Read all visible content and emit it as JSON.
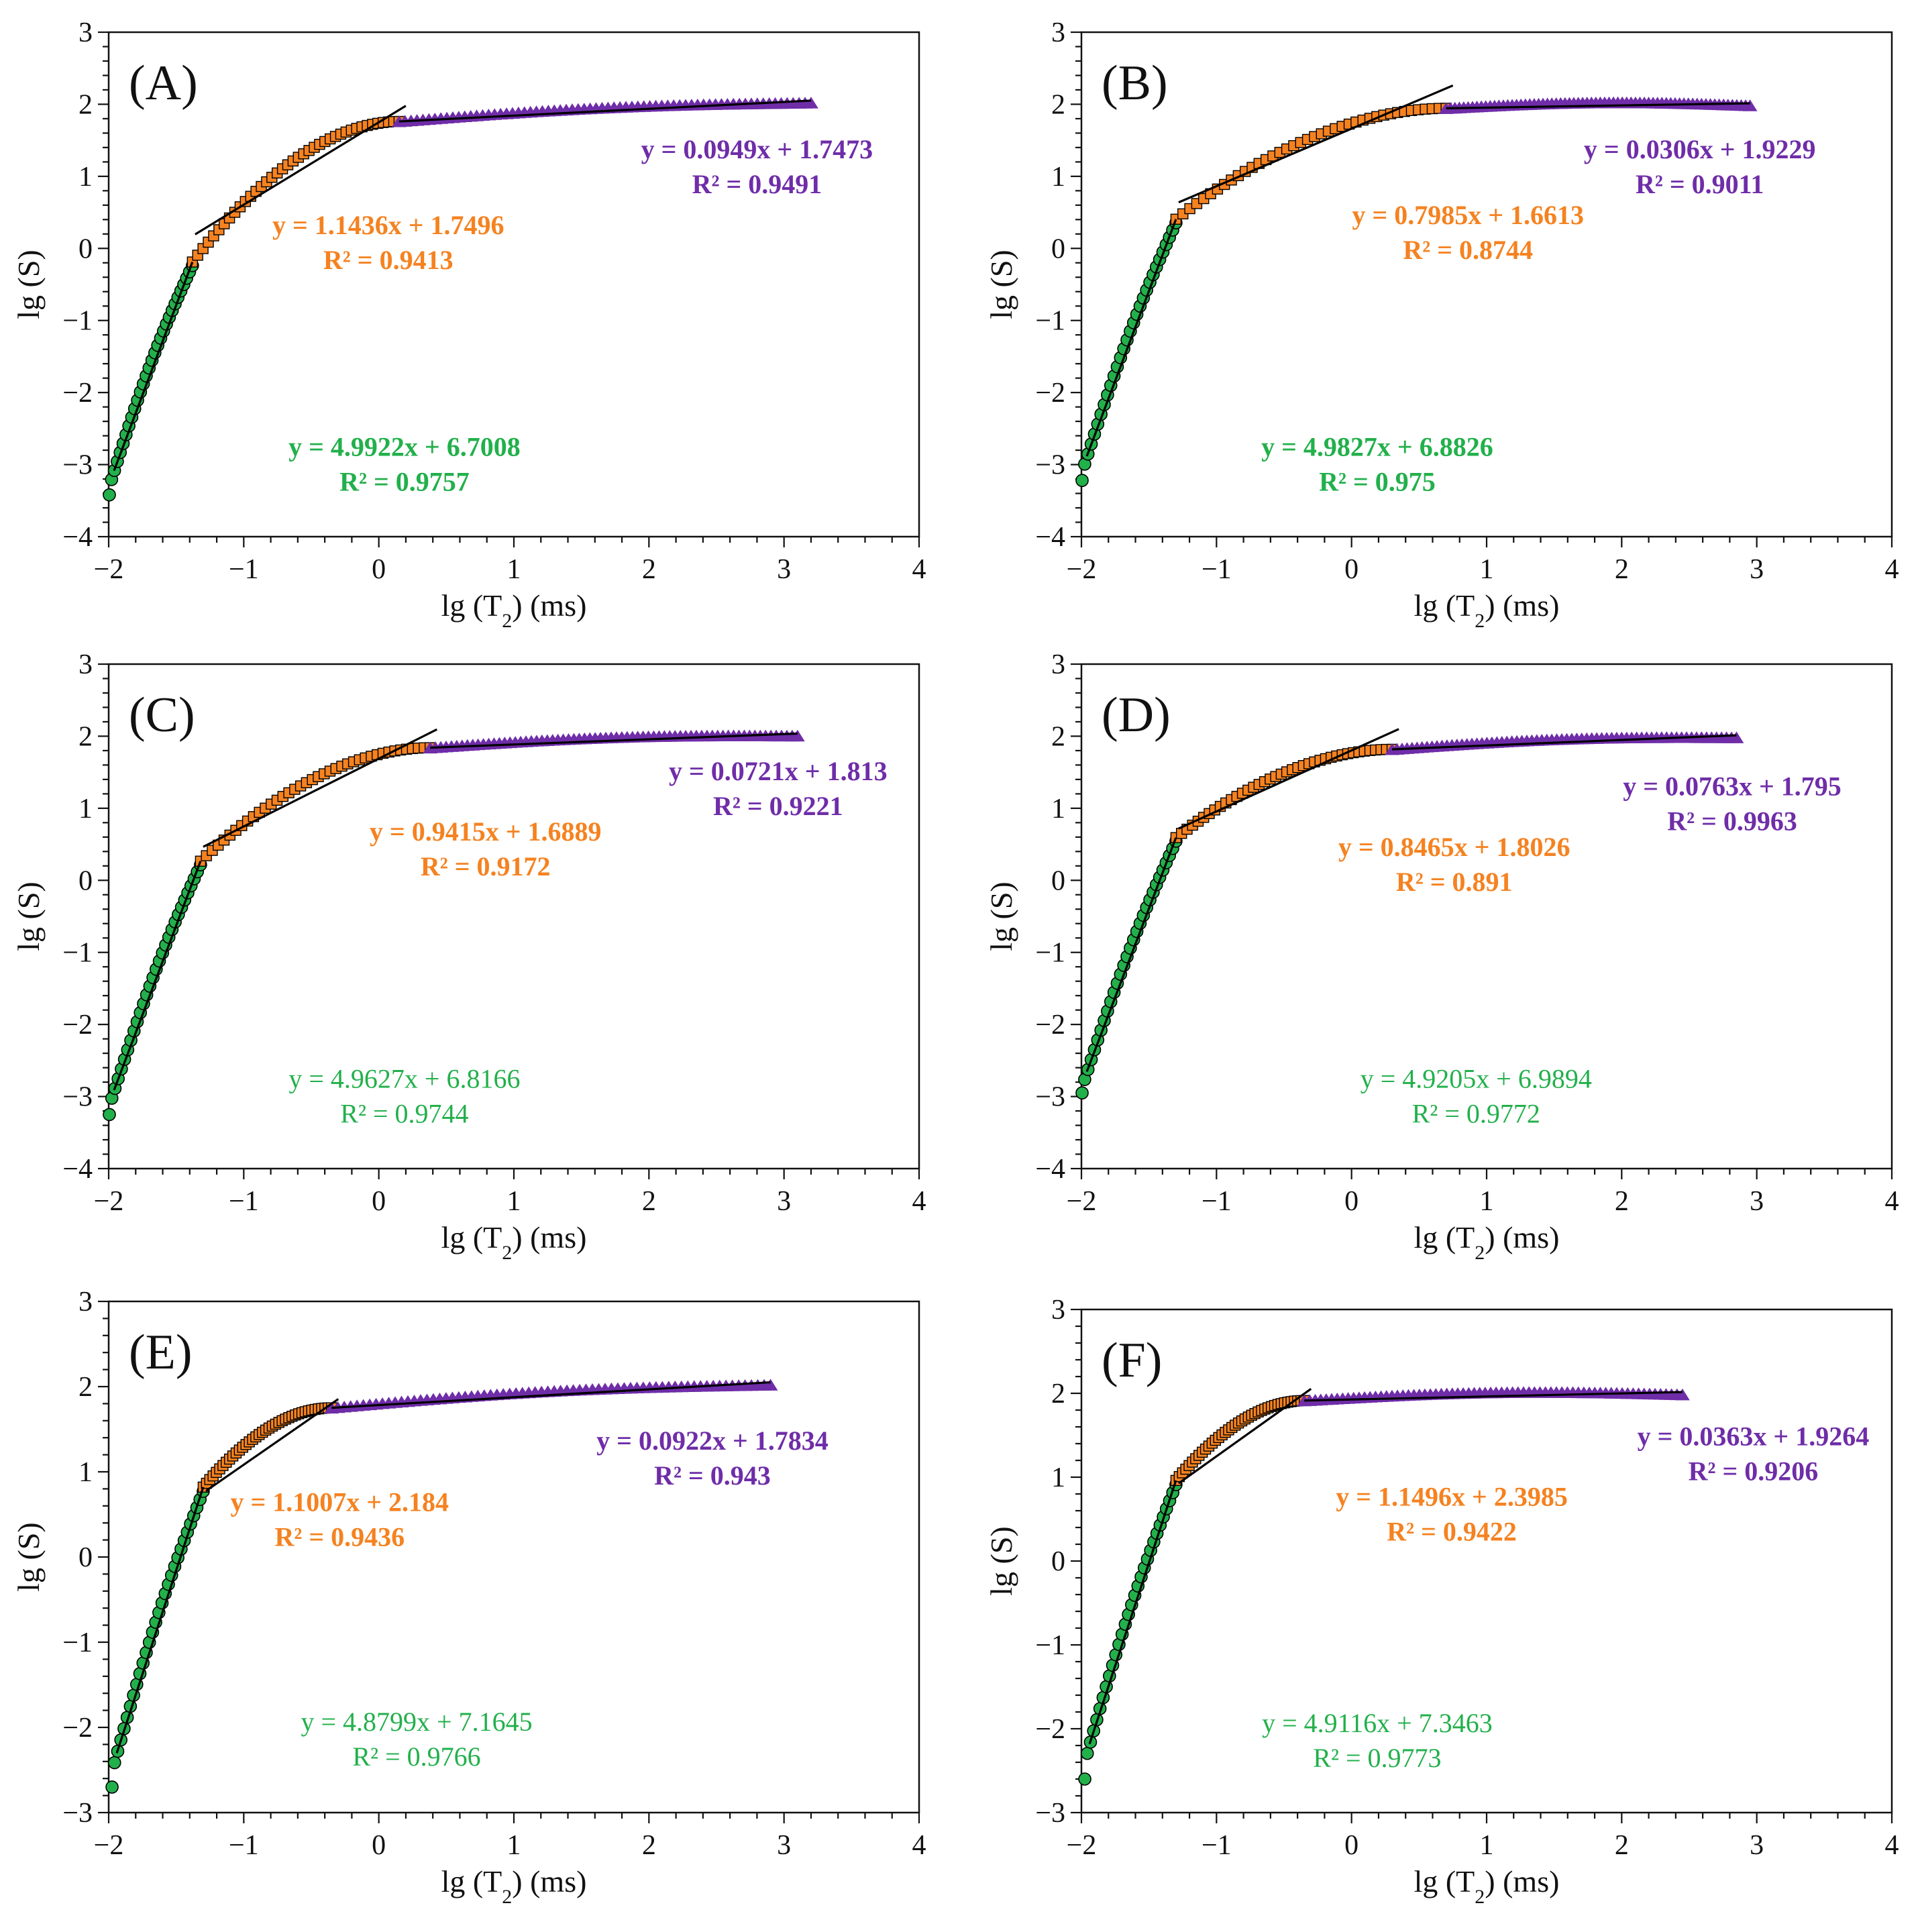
{
  "figure": {
    "colors": {
      "green": "#22b04b",
      "orange": "#f58220",
      "purple": "#6f2da8",
      "fit_line": "#000000",
      "marker_edge": "#000000"
    },
    "shared": {
      "xlabel_prefix": "lg (T",
      "xlabel_sub": "2",
      "xlabel_suffix": ") (ms)",
      "ylabel": "lg (S)"
    }
  },
  "chart_data": [
    {
      "type": "scatter",
      "label": "(A)",
      "xlim": [
        -2,
        4
      ],
      "ylim": [
        -4,
        3
      ],
      "xticks": [
        "−2",
        "−1",
        "0",
        "1",
        "2",
        "3",
        "4"
      ],
      "yticks": [
        "−4",
        "−3",
        "−2",
        "−1",
        "0",
        "1",
        "2",
        "3"
      ],
      "xlabel": "lg (T2) (ms)",
      "ylabel": "lg (S)",
      "series": [
        {
          "name": "green",
          "color": "#22b04b",
          "marker": "circle",
          "x_range": [
            -2.0,
            -1.38
          ],
          "slope": 4.9922,
          "intercept": 6.7008,
          "equation": "y = 4.9922x + 6.7008",
          "r2": "R² = 0.9757",
          "bold": true,
          "start_y": -3.42
        },
        {
          "name": "orange",
          "color": "#f58220",
          "marker": "square",
          "x_range": [
            -1.38,
            0.15
          ],
          "slope": 1.1436,
          "intercept": 1.7496,
          "equation": "y = 1.1436x + 1.7496",
          "r2": "R² = 0.9413",
          "bold": true
        },
        {
          "name": "purple",
          "color": "#6f2da8",
          "marker": "triangle",
          "x_range": [
            0.15,
            3.2
          ],
          "slope": 0.0949,
          "intercept": 1.7473,
          "equation": "y = 0.0949x + 1.7473",
          "r2": "R² = 0.9491",
          "bold": true
        }
      ]
    },
    {
      "type": "scatter",
      "label": "(B)",
      "xlim": [
        -2,
        4
      ],
      "ylim": [
        -4,
        3
      ],
      "xticks": [
        "−2",
        "−1",
        "0",
        "1",
        "2",
        "3",
        "4"
      ],
      "yticks": [
        "−4",
        "−3",
        "−2",
        "−1",
        "0",
        "1",
        "2",
        "3"
      ],
      "xlabel": "lg (T2) (ms)",
      "ylabel": "lg (S)",
      "series": [
        {
          "name": "green",
          "color": "#22b04b",
          "marker": "circle",
          "x_range": [
            -2.0,
            -1.3
          ],
          "slope": 4.9827,
          "intercept": 6.8826,
          "equation": "y = 4.9827x + 6.8826",
          "r2": "R² = 0.975",
          "bold": true,
          "start_y": -3.22
        },
        {
          "name": "orange",
          "color": "#f58220",
          "marker": "square",
          "x_range": [
            -1.3,
            0.7
          ],
          "slope": 0.7985,
          "intercept": 1.6613,
          "equation": "y = 0.7985x + 1.6613",
          "r2": "R² = 0.8744",
          "bold": true
        },
        {
          "name": "purple",
          "color": "#6f2da8",
          "marker": "triangle",
          "x_range": [
            0.7,
            2.95
          ],
          "slope": 0.0306,
          "intercept": 1.9229,
          "equation": "y = 0.0306x + 1.9229",
          "r2": "R² = 0.9011",
          "bold": true
        }
      ]
    },
    {
      "type": "scatter",
      "label": "(C)",
      "xlim": [
        -2,
        4
      ],
      "ylim": [
        -4,
        3
      ],
      "xticks": [
        "−2",
        "−1",
        "0",
        "1",
        "2",
        "3",
        "4"
      ],
      "yticks": [
        "−4",
        "−3",
        "−2",
        "−1",
        "0",
        "1",
        "2",
        "3"
      ],
      "xlabel": "lg (T2) (ms)",
      "ylabel": "lg (S)",
      "series": [
        {
          "name": "green",
          "color": "#22b04b",
          "marker": "circle",
          "x_range": [
            -2.0,
            -1.32
          ],
          "slope": 4.9627,
          "intercept": 6.8166,
          "equation": "y = 4.9627x + 6.8166",
          "r2": "R² = 0.9744",
          "bold": false,
          "start_y": -3.25
        },
        {
          "name": "orange",
          "color": "#f58220",
          "marker": "square",
          "x_range": [
            -1.32,
            0.38
          ],
          "slope": 0.9415,
          "intercept": 1.6889,
          "equation": "y = 0.9415x + 1.6889",
          "r2": "R² = 0.9172",
          "bold": true
        },
        {
          "name": "purple",
          "color": "#6f2da8",
          "marker": "triangle",
          "x_range": [
            0.38,
            3.1
          ],
          "slope": 0.0721,
          "intercept": 1.813,
          "equation": "y = 0.0721x + 1.813",
          "r2": "R² = 0.9221",
          "bold": true
        }
      ]
    },
    {
      "type": "scatter",
      "label": "(D)",
      "xlim": [
        -2,
        4
      ],
      "ylim": [
        -4,
        3
      ],
      "xticks": [
        "−2",
        "−1",
        "0",
        "1",
        "2",
        "3",
        "4"
      ],
      "yticks": [
        "−4",
        "−3",
        "−2",
        "−1",
        "0",
        "1",
        "2",
        "3"
      ],
      "xlabel": "lg (T2) (ms)",
      "ylabel": "lg (S)",
      "series": [
        {
          "name": "green",
          "color": "#22b04b",
          "marker": "circle",
          "x_range": [
            -2.0,
            -1.3
          ],
          "slope": 4.9205,
          "intercept": 6.9894,
          "equation": "y = 4.9205x + 6.9894",
          "r2": "R² = 0.9772",
          "bold": false,
          "start_y": -2.95
        },
        {
          "name": "orange",
          "color": "#f58220",
          "marker": "square",
          "x_range": [
            -1.3,
            0.3
          ],
          "slope": 0.8465,
          "intercept": 1.8026,
          "equation": "y = 0.8465x + 1.8026",
          "r2": "R² = 0.891",
          "bold": true
        },
        {
          "name": "purple",
          "color": "#6f2da8",
          "marker": "triangle",
          "x_range": [
            0.3,
            2.85
          ],
          "slope": 0.0763,
          "intercept": 1.795,
          "equation": "y = 0.0763x + 1.795",
          "r2": "R² = 0.9963",
          "bold": true
        }
      ]
    },
    {
      "type": "scatter",
      "label": "(E)",
      "xlim": [
        -2,
        4
      ],
      "ylim": [
        -3,
        3
      ],
      "xticks": [
        "−2",
        "−1",
        "0",
        "1",
        "2",
        "3",
        "4"
      ],
      "yticks": [
        "−3",
        "−2",
        "−1",
        "0",
        "1",
        "2",
        "3"
      ],
      "xlabel": "lg (T2) (ms)",
      "ylabel": "lg (S)",
      "series": [
        {
          "name": "green",
          "color": "#22b04b",
          "marker": "circle",
          "x_range": [
            -1.98,
            -1.3
          ],
          "slope": 4.8799,
          "intercept": 7.1645,
          "equation": "y = 4.8799x + 7.1645",
          "r2": "R² = 0.9766",
          "bold": false,
          "start_y": -2.7
        },
        {
          "name": "orange",
          "color": "#f58220",
          "marker": "square",
          "x_range": [
            -1.3,
            -0.35
          ],
          "slope": 1.1007,
          "intercept": 2.184,
          "equation": "y = 1.1007x + 2.184",
          "r2": "R² = 0.9436",
          "bold": true
        },
        {
          "name": "purple",
          "color": "#6f2da8",
          "marker": "triangle",
          "x_range": [
            -0.35,
            2.9
          ],
          "slope": 0.0922,
          "intercept": 1.7834,
          "equation": "y = 0.0922x + 1.7834",
          "r2": "R² = 0.943",
          "bold": true
        }
      ]
    },
    {
      "type": "scatter",
      "label": "(F)",
      "xlim": [
        -2,
        4
      ],
      "ylim": [
        -3,
        3
      ],
      "xticks": [
        "−2",
        "−1",
        "0",
        "1",
        "2",
        "3",
        "4"
      ],
      "yticks": [
        "−3",
        "−2",
        "−1",
        "0",
        "1",
        "2",
        "3"
      ],
      "xlabel": "lg (T2) (ms)",
      "ylabel": "lg (S)",
      "series": [
        {
          "name": "green",
          "color": "#22b04b",
          "marker": "circle",
          "x_range": [
            -1.98,
            -1.3
          ],
          "slope": 4.9116,
          "intercept": 7.3463,
          "equation": "y = 4.9116x + 7.3463",
          "r2": "R² = 0.9773",
          "bold": false,
          "start_y": -2.6
        },
        {
          "name": "orange",
          "color": "#f58220",
          "marker": "square",
          "x_range": [
            -1.3,
            -0.35
          ],
          "slope": 1.1496,
          "intercept": 2.3985,
          "equation": "y = 1.1496x + 2.3985",
          "r2": "R² = 0.9422",
          "bold": true
        },
        {
          "name": "purple",
          "color": "#6f2da8",
          "marker": "triangle",
          "x_range": [
            -0.35,
            2.45
          ],
          "slope": 0.0363,
          "intercept": 1.9264,
          "equation": "y = 0.0363x + 1.9264",
          "r2": "R² = 0.9206",
          "bold": true
        }
      ]
    }
  ]
}
